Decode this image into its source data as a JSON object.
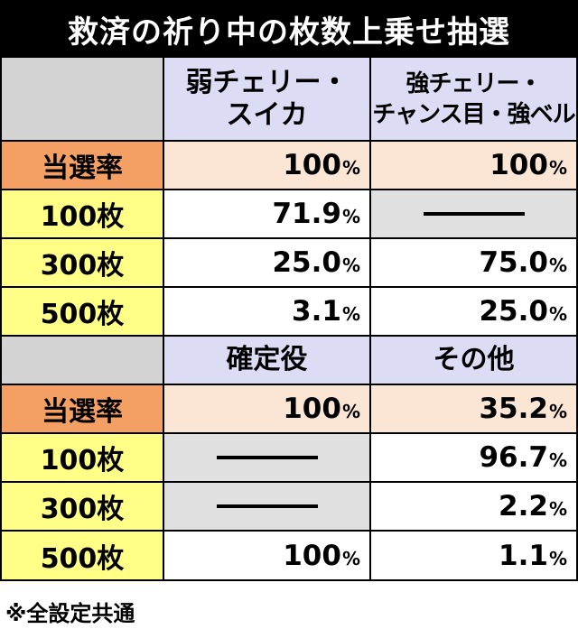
{
  "title": "救済の祈り中の枚数上乗せ抽選",
  "section1": {
    "col1_header": [
      "弱チェリー・",
      "スイカ"
    ],
    "col2_header": [
      "強チェリー・",
      "チャンス目・強ベル"
    ],
    "rows": [
      {
        "label": "当選率",
        "v1": "100",
        "v2": "100"
      },
      {
        "label": "100枚",
        "v1": "71.9",
        "v2": ""
      },
      {
        "label": "300枚",
        "v1": "25.0",
        "v2": "75.0"
      },
      {
        "label": "500枚",
        "v1": "3.1",
        "v2": "25.0"
      }
    ]
  },
  "section2": {
    "col1_header": "確定役",
    "col2_header": "その他",
    "rows": [
      {
        "label": "当選率",
        "v1": "100",
        "v2": "35.2"
      },
      {
        "label": "100枚",
        "v1": "",
        "v2": "96.7"
      },
      {
        "label": "300枚",
        "v1": "",
        "v2": "2.2"
      },
      {
        "label": "500枚",
        "v1": "100",
        "v2": "1.1"
      }
    ]
  },
  "percent_sign": "%",
  "footnote": "※全設定共通"
}
